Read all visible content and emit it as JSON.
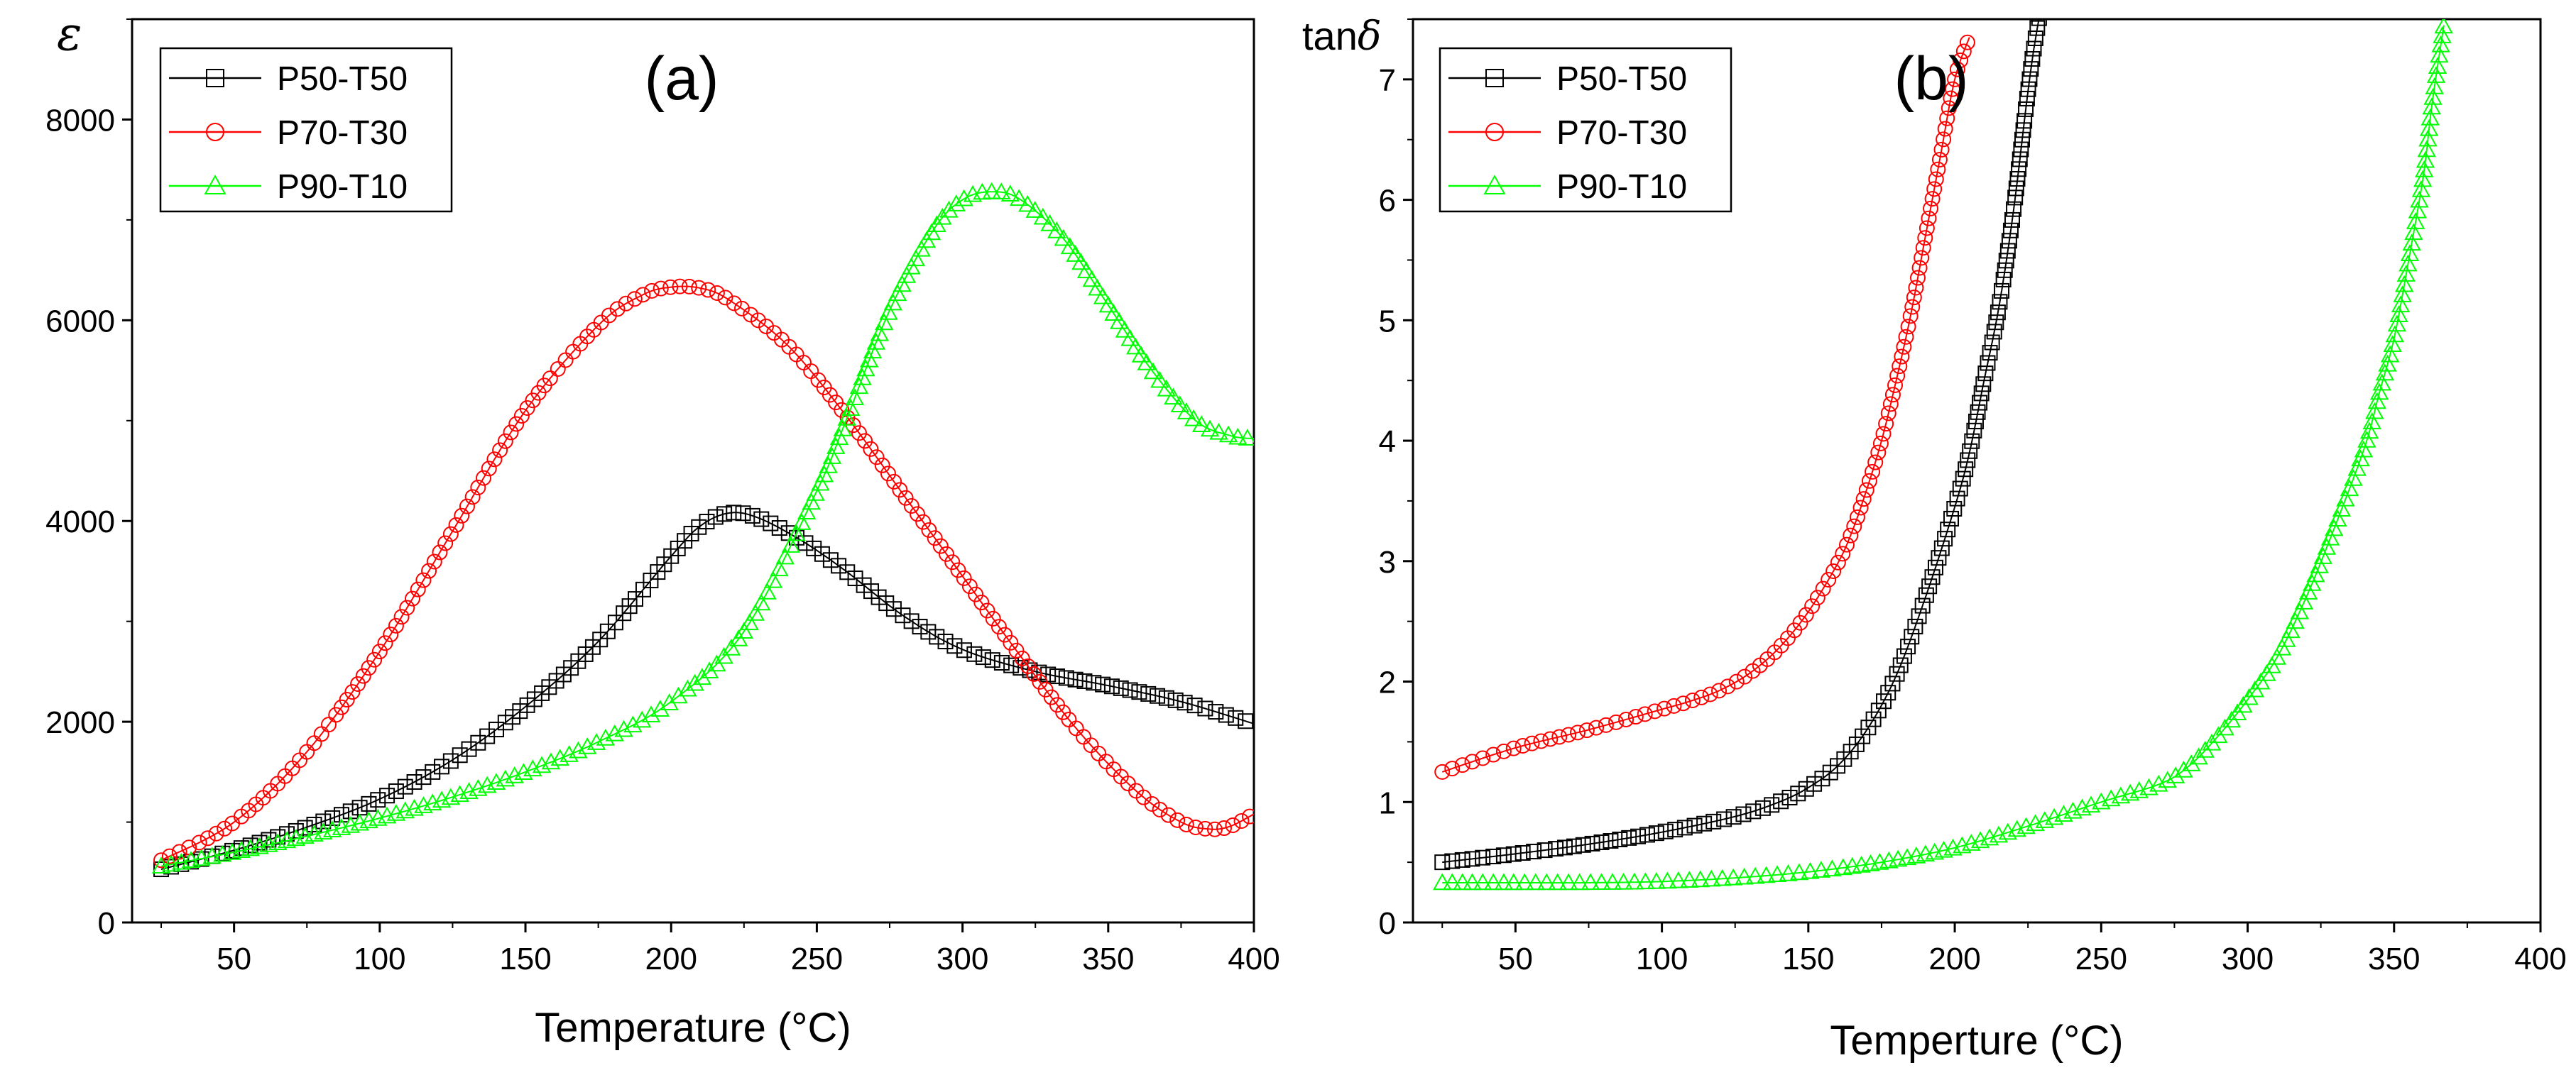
{
  "chart_data": [
    {
      "type": "scatter",
      "panel_label": "(a)",
      "ylabel": "ε",
      "xlabel": "Temperature (°C)",
      "xlim": [
        15,
        400
      ],
      "ylim": [
        0,
        9000
      ],
      "xticks": [
        50,
        100,
        150,
        200,
        250,
        300,
        350,
        400
      ],
      "yticks": [
        0,
        2000,
        4000,
        6000,
        8000
      ],
      "x_tick_labels": [
        "50",
        "100",
        "150",
        "200",
        "250",
        "300",
        "350",
        "400"
      ],
      "y_tick_labels": [
        "0",
        "2000",
        "4000",
        "6000",
        "8000"
      ],
      "legend_position": "top-left",
      "series": [
        {
          "name": "P50-T50",
          "color": "#000000",
          "marker": "square",
          "x": [
            25,
            50,
            75,
            100,
            125,
            150,
            175,
            200,
            210,
            220,
            230,
            245,
            260,
            280,
            300,
            325,
            350,
            375,
            400
          ],
          "y": [
            530,
            720,
            950,
            1230,
            1620,
            2150,
            2800,
            3650,
            3950,
            4080,
            4030,
            3800,
            3500,
            3050,
            2720,
            2500,
            2360,
            2200,
            1980
          ]
        },
        {
          "name": "P70-T30",
          "color": "#ff0000",
          "marker": "circle",
          "x": [
            25,
            50,
            75,
            100,
            125,
            150,
            175,
            190,
            200,
            210,
            220,
            240,
            260,
            280,
            300,
            320,
            340,
            360,
            375,
            385,
            392,
            400
          ],
          "y": [
            620,
            1000,
            1700,
            2700,
            3900,
            5100,
            5950,
            6250,
            6330,
            6320,
            6200,
            5750,
            5050,
            4250,
            3450,
            2650,
            1900,
            1300,
            1000,
            930,
            960,
            1080
          ]
        },
        {
          "name": "P90-T10",
          "color": "#00ff00",
          "marker": "triangle",
          "x": [
            25,
            50,
            75,
            100,
            125,
            150,
            175,
            200,
            225,
            250,
            260,
            275,
            290,
            300,
            310,
            320,
            335,
            350,
            365,
            380,
            392,
            400
          ],
          "y": [
            560,
            700,
            860,
            1040,
            1250,
            1500,
            1800,
            2200,
            2900,
            4300,
            5000,
            6100,
            6900,
            7200,
            7280,
            7200,
            6800,
            6150,
            5500,
            5000,
            4850,
            4820
          ]
        }
      ]
    },
    {
      "type": "scatter",
      "panel_label": "(b)",
      "ylabel": "tanδ",
      "ylabel_prefix": "tan",
      "ylabel_symbol": "δ",
      "xlabel": "Temperture (°C)",
      "xlim": [
        15,
        400
      ],
      "ylim": [
        0,
        7.5
      ],
      "xticks": [
        50,
        100,
        150,
        200,
        250,
        300,
        350,
        400
      ],
      "yticks": [
        0,
        1,
        2,
        3,
        4,
        5,
        6,
        7
      ],
      "x_tick_labels": [
        "50",
        "100",
        "150",
        "200",
        "250",
        "300",
        "350",
        "400"
      ],
      "y_tick_labels": [
        "0",
        "1",
        "2",
        "3",
        "4",
        "5",
        "6",
        "7"
      ],
      "legend_position": "top-left",
      "series": [
        {
          "name": "P50-T50",
          "color": "#000000",
          "marker": "square",
          "x": [
            25,
            50,
            75,
            100,
            125,
            140,
            150,
            160,
            170,
            180,
            190,
            200,
            205,
            210,
            215,
            220,
            225,
            228,
            232
          ],
          "y": [
            0.5,
            0.57,
            0.65,
            0.75,
            0.88,
            1.0,
            1.12,
            1.3,
            1.6,
            2.05,
            2.7,
            3.45,
            3.9,
            4.5,
            5.1,
            5.9,
            6.9,
            7.4,
            7.9
          ]
        },
        {
          "name": "P70-T30",
          "color": "#ff0000",
          "marker": "circle",
          "x": [
            25,
            50,
            75,
            100,
            110,
            120,
            130,
            140,
            150,
            160,
            165,
            170,
            175,
            180,
            185,
            190,
            195,
            200,
            205
          ],
          "y": [
            1.25,
            1.45,
            1.6,
            1.77,
            1.84,
            1.93,
            2.07,
            2.28,
            2.58,
            2.98,
            3.25,
            3.6,
            4.0,
            4.5,
            5.05,
            5.7,
            6.35,
            7.0,
            7.35
          ]
        },
        {
          "name": "P90-T10",
          "color": "#00ff00",
          "marker": "triangle",
          "x": [
            25,
            50,
            75,
            100,
            125,
            150,
            175,
            200,
            225,
            250,
            270,
            280,
            290,
            300,
            310,
            320,
            330,
            340,
            345,
            350,
            355,
            360,
            363,
            367
          ],
          "y": [
            0.33,
            0.33,
            0.33,
            0.34,
            0.37,
            0.42,
            0.5,
            0.62,
            0.8,
            1.0,
            1.15,
            1.3,
            1.55,
            1.85,
            2.2,
            2.7,
            3.3,
            3.95,
            4.4,
            4.85,
            5.5,
            6.2,
            6.8,
            7.45
          ]
        }
      ]
    }
  ]
}
